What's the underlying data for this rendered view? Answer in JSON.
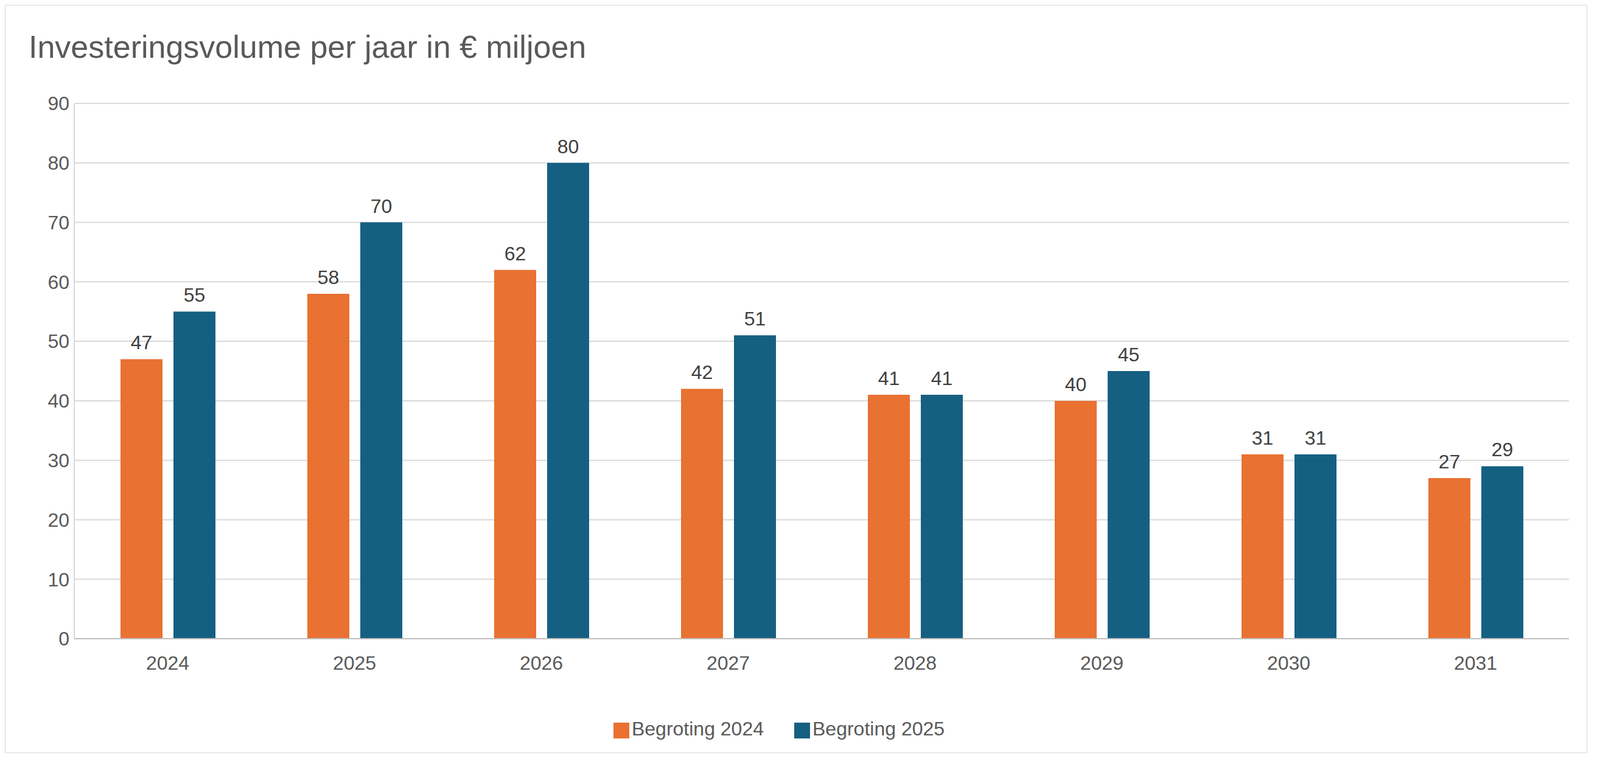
{
  "chart_data": {
    "type": "bar",
    "title": "Investeringsvolume per jaar in € miljoen",
    "categories": [
      "2024",
      "2025",
      "2026",
      "2027",
      "2028",
      "2029",
      "2030",
      "2031"
    ],
    "series": [
      {
        "name": "Begroting 2024",
        "color": "#E97132",
        "values": [
          47,
          58,
          62,
          42,
          41,
          40,
          31,
          27
        ]
      },
      {
        "name": "Begroting 2025",
        "color": "#156082",
        "values": [
          55,
          70,
          80,
          51,
          41,
          45,
          31,
          29
        ]
      }
    ],
    "ylim": [
      0,
      90
    ],
    "yticks": [
      0,
      10,
      20,
      30,
      40,
      50,
      60,
      70,
      80,
      90
    ],
    "grid": true,
    "legend": "bottom",
    "data_labels": true
  }
}
